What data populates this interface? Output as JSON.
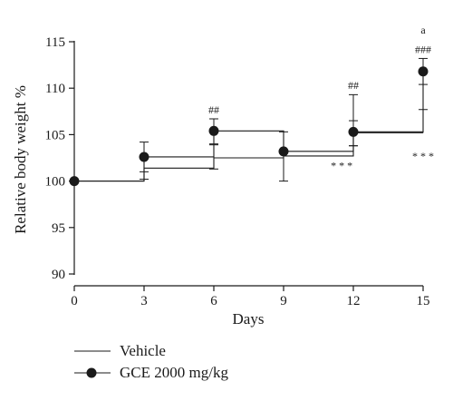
{
  "chart_data": {
    "type": "line",
    "xlabel": "Days",
    "ylabel": "Relative body weight %",
    "xlim": [
      0,
      15
    ],
    "ylim": [
      90,
      115
    ],
    "xticks": [
      0,
      3,
      6,
      9,
      12,
      15
    ],
    "yticks": [
      90,
      95,
      100,
      105,
      110,
      115
    ],
    "grid": false,
    "legend_position": "bottom-left",
    "series": [
      {
        "name": "Vehicle",
        "marker": "none",
        "line_style": "step",
        "x": [
          0,
          3,
          6,
          9,
          12,
          15
        ],
        "y": [
          100,
          101.4,
          102.5,
          102.7,
          105.2,
          105.2
        ],
        "err_low": [
          0,
          1.2,
          1.2,
          0,
          1.4,
          0
        ],
        "err_high": [
          0,
          0,
          1.5,
          0,
          1.3,
          2.5
        ]
      },
      {
        "name": "GCE 2000 mg/kg",
        "marker": "filled-circle",
        "line_style": "step",
        "x": [
          0,
          3,
          6,
          9,
          12,
          15
        ],
        "y": [
          100,
          102.6,
          105.4,
          103.2,
          105.3,
          111.8
        ],
        "err_low": [
          0,
          1.6,
          1.5,
          3.2,
          1.5,
          1.4
        ],
        "err_high": [
          0,
          1.6,
          1.3,
          2.1,
          4.0,
          1.4
        ]
      }
    ],
    "annotations": [
      {
        "x": 6,
        "y": 107.3,
        "text": "##"
      },
      {
        "x": 12,
        "y": 109.9,
        "text": "##"
      },
      {
        "x": 15,
        "y": 113.8,
        "text": "###"
      },
      {
        "x": 15,
        "y": 115.9,
        "text": "a"
      },
      {
        "x": 11.5,
        "y": 101.3,
        "text": "* * *"
      },
      {
        "x": 15,
        "y": 102.3,
        "text": "* * *"
      }
    ]
  }
}
